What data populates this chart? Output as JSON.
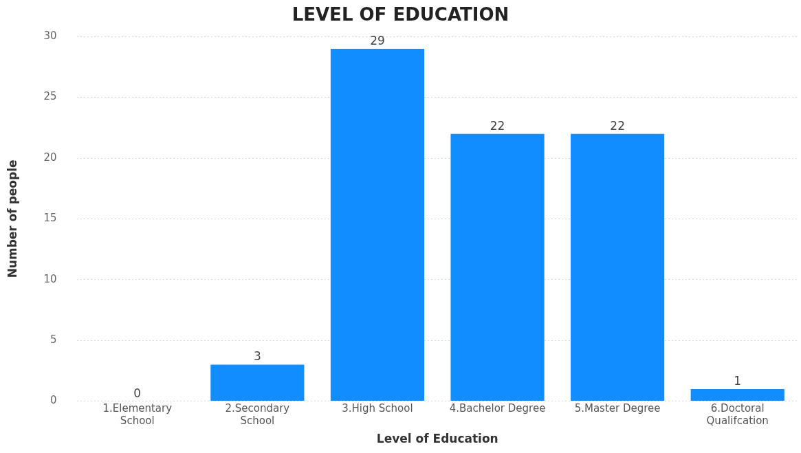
{
  "chart_data": {
    "type": "bar",
    "title": "LEVEL OF EDUCATION",
    "xlabel": "Level of Education",
    "ylabel": "Number of people",
    "categories": [
      "1.Elementary School",
      "2.Secondary School",
      "3.High School",
      "4.Bachelor Degree",
      "5.Master Degree",
      "6.Doctoral Qualifcation"
    ],
    "values": [
      0,
      3,
      29,
      22,
      22,
      1
    ],
    "color": "#118dff",
    "ylim": [
      0,
      30
    ],
    "yticks": [
      0,
      5,
      10,
      15,
      20,
      25,
      30
    ],
    "grid": "y",
    "data_labels": true
  }
}
